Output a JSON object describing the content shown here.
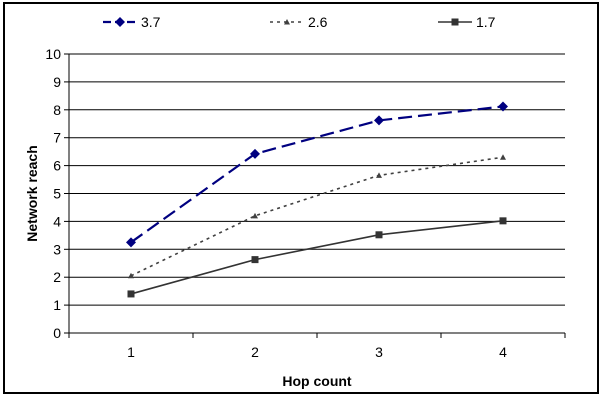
{
  "chart_data": {
    "type": "line",
    "xlabel": "Hop count",
    "ylabel": "Network reach",
    "x": [
      1,
      2,
      3,
      4
    ],
    "xticks": [
      "1",
      "2",
      "3",
      "4"
    ],
    "ylim": [
      0,
      10
    ],
    "yticks": [
      0,
      1,
      2,
      3,
      4,
      5,
      6,
      7,
      8,
      9,
      10
    ],
    "grid": "horizontal",
    "legend_position": "top",
    "series": [
      {
        "name": "3.7",
        "values": [
          3.25,
          6.42,
          7.62,
          8.12
        ],
        "color": "#000080",
        "dash": "dashed",
        "marker": "diamond"
      },
      {
        "name": "2.6",
        "values": [
          2.05,
          4.2,
          5.65,
          6.3
        ],
        "color": "#404040",
        "dash": "dotted",
        "marker": "triangle"
      },
      {
        "name": "1.7",
        "values": [
          1.4,
          2.63,
          3.52,
          4.02
        ],
        "color": "#333333",
        "dash": "solid",
        "marker": "square"
      }
    ]
  }
}
